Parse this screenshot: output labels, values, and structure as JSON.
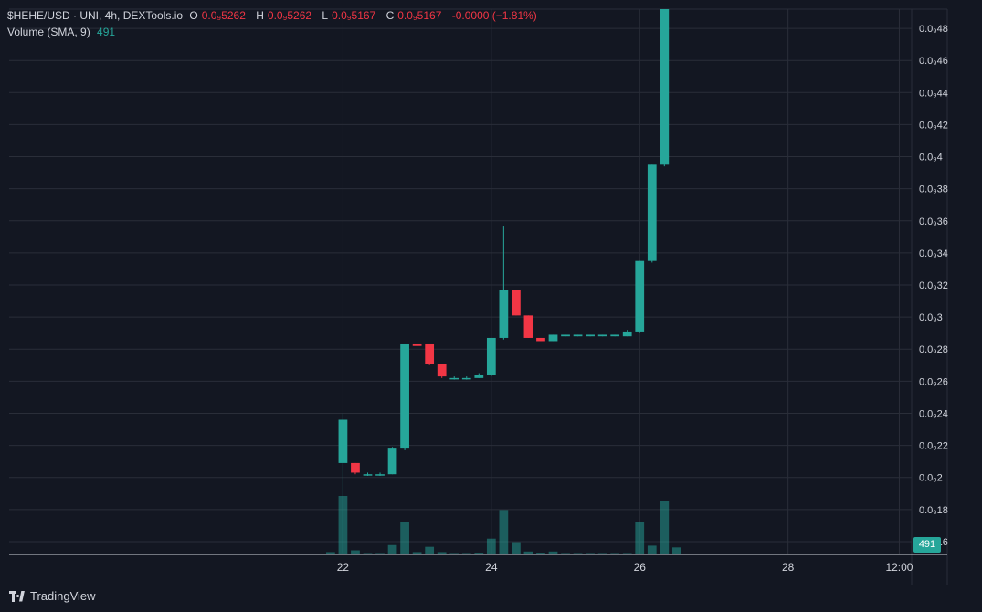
{
  "legend": {
    "symbol": "$HEHE/USD · UNI, 4h, DEXTools.io",
    "open_label": "O",
    "open_value": "0.0₉5262",
    "high_label": "H",
    "high_value": "0.0₉5262",
    "low_label": "L",
    "low_value": "0.0₉5167",
    "close_label": "C",
    "close_value": "0.0₉5167",
    "change": "-0.0000 (−1.81%)",
    "volume_label": "Volume (SMA, 9)",
    "volume_value": "491"
  },
  "price_badge": "491",
  "branding": "TradingView",
  "colors": {
    "up": "#26a69a",
    "down": "#f23645",
    "background": "#131722",
    "grid": "#2a2e39",
    "text": "#d1d4dc"
  },
  "chart_data": {
    "type": "candlestick",
    "y_axis": {
      "ticks": [
        0.16,
        0.18,
        0.2,
        0.22,
        0.24,
        0.26,
        0.28,
        0.3,
        0.32,
        0.34,
        0.36,
        0.38,
        0.4,
        0.42,
        0.44,
        0.46,
        0.48
      ],
      "tick_labels": [
        "0.0₉16",
        "0.0₉18",
        "0.0₉2",
        "0.0₉22",
        "0.0₉24",
        "0.0₉26",
        "0.0₉28",
        "0.0₉3",
        "0.0₉32",
        "0.0₉34",
        "0.0₉36",
        "0.0₉38",
        "0.0₉4",
        "0.0₉42",
        "0.0₉44",
        "0.0₉46",
        "0.0₉48"
      ],
      "range": [
        0.152,
        0.492
      ],
      "side": "right"
    },
    "x_axis": {
      "tick_labels": [
        "22",
        "24",
        "26",
        "28",
        "12:00"
      ],
      "tick_index": [
        0,
        12,
        24,
        36,
        45
      ],
      "index_range": [
        -27,
        46
      ]
    },
    "candles": [
      {
        "i": 0,
        "o": 0.209,
        "h": 0.24,
        "l": 0.153,
        "c": 0.236
      },
      {
        "i": 1,
        "o": 0.209,
        "h": 0.209,
        "l": 0.202,
        "c": 0.203
      },
      {
        "i": 2,
        "o": 0.202,
        "h": 0.203,
        "l": 0.201,
        "c": 0.202
      },
      {
        "i": 3,
        "o": 0.202,
        "h": 0.203,
        "l": 0.201,
        "c": 0.202
      },
      {
        "i": 4,
        "o": 0.202,
        "h": 0.219,
        "l": 0.202,
        "c": 0.218
      },
      {
        "i": 5,
        "o": 0.218,
        "h": 0.283,
        "l": 0.217,
        "c": 0.283
      },
      {
        "i": 6,
        "o": 0.283,
        "h": 0.283,
        "l": 0.282,
        "c": 0.282
      },
      {
        "i": 7,
        "o": 0.283,
        "h": 0.283,
        "l": 0.27,
        "c": 0.271
      },
      {
        "i": 8,
        "o": 0.271,
        "h": 0.271,
        "l": 0.262,
        "c": 0.263
      },
      {
        "i": 9,
        "o": 0.262,
        "h": 0.263,
        "l": 0.261,
        "c": 0.262
      },
      {
        "i": 10,
        "o": 0.262,
        "h": 0.263,
        "l": 0.261,
        "c": 0.262
      },
      {
        "i": 11,
        "o": 0.262,
        "h": 0.265,
        "l": 0.262,
        "c": 0.264
      },
      {
        "i": 12,
        "o": 0.264,
        "h": 0.287,
        "l": 0.263,
        "c": 0.287
      },
      {
        "i": 13,
        "o": 0.287,
        "h": 0.357,
        "l": 0.286,
        "c": 0.317
      },
      {
        "i": 14,
        "o": 0.317,
        "h": 0.317,
        "l": 0.301,
        "c": 0.301
      },
      {
        "i": 15,
        "o": 0.301,
        "h": 0.301,
        "l": 0.287,
        "c": 0.287
      },
      {
        "i": 16,
        "o": 0.287,
        "h": 0.287,
        "l": 0.285,
        "c": 0.285
      },
      {
        "i": 17,
        "o": 0.285,
        "h": 0.289,
        "l": 0.285,
        "c": 0.289
      },
      {
        "i": 18,
        "o": 0.288,
        "h": 0.289,
        "l": 0.288,
        "c": 0.289
      },
      {
        "i": 19,
        "o": 0.288,
        "h": 0.289,
        "l": 0.288,
        "c": 0.289
      },
      {
        "i": 20,
        "o": 0.288,
        "h": 0.289,
        "l": 0.288,
        "c": 0.289
      },
      {
        "i": 21,
        "o": 0.288,
        "h": 0.289,
        "l": 0.288,
        "c": 0.289
      },
      {
        "i": 22,
        "o": 0.288,
        "h": 0.289,
        "l": 0.288,
        "c": 0.289
      },
      {
        "i": 23,
        "o": 0.288,
        "h": 0.292,
        "l": 0.288,
        "c": 0.291
      },
      {
        "i": 24,
        "o": 0.291,
        "h": 0.335,
        "l": 0.29,
        "c": 0.335
      },
      {
        "i": 25,
        "o": 0.335,
        "h": 0.395,
        "l": 0.334,
        "c": 0.395
      },
      {
        "i": 26,
        "o": 0.395,
        "h": 0.492,
        "l": 0.394,
        "c": 0.492
      }
    ],
    "volume": [
      {
        "i": -1,
        "v": 0.04
      },
      {
        "i": 0,
        "v": 1.0
      },
      {
        "i": 1,
        "v": 0.07
      },
      {
        "i": 2,
        "v": 0.02
      },
      {
        "i": 3,
        "v": 0.02
      },
      {
        "i": 4,
        "v": 0.16
      },
      {
        "i": 5,
        "v": 0.55
      },
      {
        "i": 6,
        "v": 0.04
      },
      {
        "i": 7,
        "v": 0.13
      },
      {
        "i": 8,
        "v": 0.04
      },
      {
        "i": 9,
        "v": 0.02
      },
      {
        "i": 10,
        "v": 0.02
      },
      {
        "i": 11,
        "v": 0.03
      },
      {
        "i": 12,
        "v": 0.27
      },
      {
        "i": 13,
        "v": 0.76
      },
      {
        "i": 14,
        "v": 0.21
      },
      {
        "i": 15,
        "v": 0.05
      },
      {
        "i": 16,
        "v": 0.03
      },
      {
        "i": 17,
        "v": 0.05
      },
      {
        "i": 18,
        "v": 0.02
      },
      {
        "i": 19,
        "v": 0.02
      },
      {
        "i": 20,
        "v": 0.02
      },
      {
        "i": 21,
        "v": 0.02
      },
      {
        "i": 22,
        "v": 0.02
      },
      {
        "i": 23,
        "v": 0.02
      },
      {
        "i": 24,
        "v": 0.55
      },
      {
        "i": 25,
        "v": 0.15
      },
      {
        "i": 26,
        "v": 0.91
      },
      {
        "i": 27,
        "v": 0.12
      }
    ]
  }
}
